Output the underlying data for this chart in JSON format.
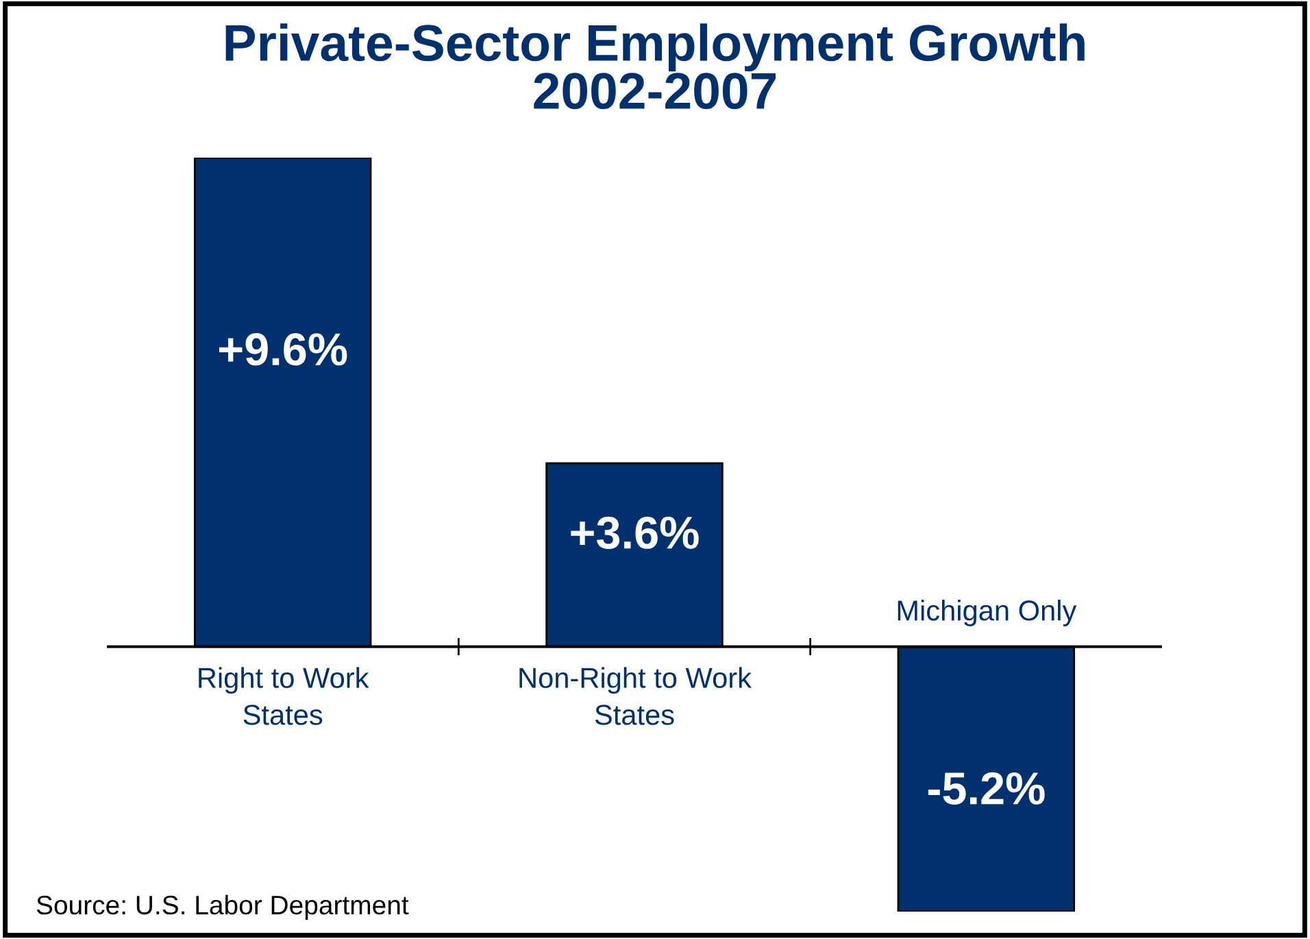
{
  "chart_data": {
    "type": "bar",
    "title": "Private-Sector Employment Growth\n2002-2007",
    "categories": [
      "Right to Work\nStates",
      "Non-Right to Work\nStates",
      "Michigan Only"
    ],
    "values": [
      9.6,
      3.6,
      -5.2
    ],
    "value_labels": [
      "+9.6%",
      "+3.6%",
      "-5.2%"
    ],
    "color": "#00306e",
    "annotations": [
      "Source: U.S. Labor Department"
    ]
  }
}
